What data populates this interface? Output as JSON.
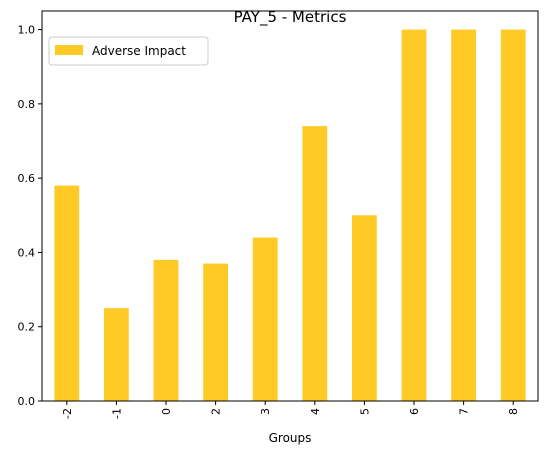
{
  "chart_data": {
    "type": "bar",
    "title": "PAY_5 - Metrics",
    "xlabel": "Groups",
    "ylabel": "",
    "categories": [
      "-2",
      "-1",
      "0",
      "2",
      "3",
      "4",
      "5",
      "6",
      "7",
      "8"
    ],
    "series": [
      {
        "name": "Adverse Impact",
        "values": [
          0.58,
          0.25,
          0.38,
          0.37,
          0.44,
          0.74,
          0.5,
          1.0,
          1.0,
          1.0
        ],
        "color": "#FFC926"
      }
    ],
    "ylim": [
      0,
      1.05
    ],
    "yticks": [
      "0.0",
      "0.2",
      "0.4",
      "0.6",
      "0.8",
      "1.0"
    ],
    "grid": false,
    "legend_position": "upper-left"
  }
}
